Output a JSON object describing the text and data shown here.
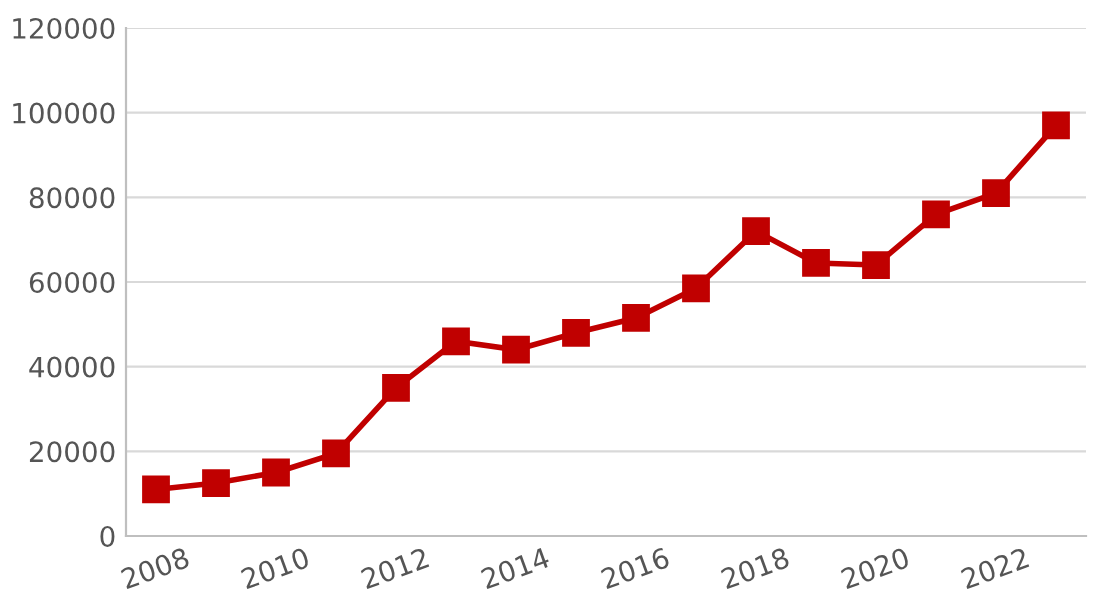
{
  "chart_data": {
    "type": "line",
    "x": [
      2008,
      2009,
      2010,
      2011,
      2012,
      2013,
      2014,
      2015,
      2016,
      2017,
      2018,
      2019,
      2020,
      2021,
      2022,
      2023
    ],
    "series": [
      {
        "color": "#c00000",
        "values": [
          11000,
          12500,
          15000,
          19500,
          35000,
          46000,
          44000,
          48000,
          51500,
          58500,
          72000,
          64500,
          64000,
          76000,
          81000,
          97000
        ]
      }
    ],
    "xlim": [
      2007.5,
      2023.5
    ],
    "xticks": [
      2008,
      2010,
      2012,
      2014,
      2016,
      2018,
      2020,
      2022
    ],
    "ylim": [
      0,
      120000
    ],
    "yticks": [
      0,
      20000,
      40000,
      60000,
      80000,
      100000,
      120000
    ],
    "grid": "y",
    "marker": "square",
    "line_style": "solid",
    "legend": false
  }
}
